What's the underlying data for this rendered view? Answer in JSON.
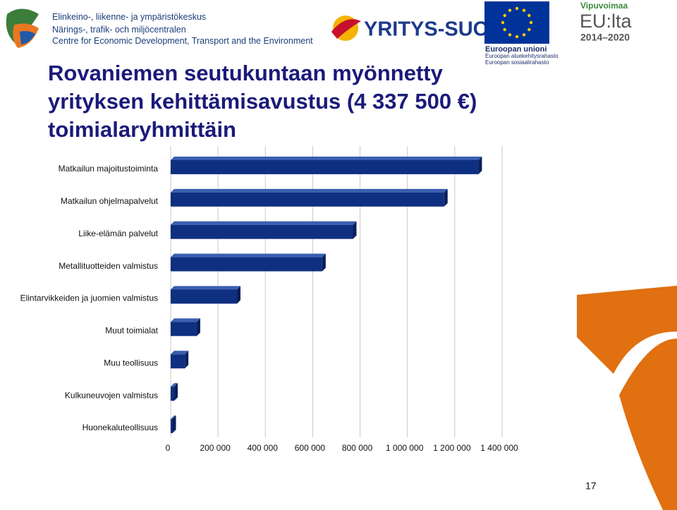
{
  "header": {
    "ely_lines": [
      "Elinkeino-, liikenne- ja ympäristökeskus",
      "Närings-, trafik- och miljöcentralen",
      "Centre for Economic Development, Transport and the Environment"
    ],
    "yritys_suomi": "YRITYS-SUOMI",
    "eu_title": "Euroopan unioni",
    "eu_lines": [
      "Euroopan aluekehitysrahasto",
      "Euroopan sosiaalirahasto"
    ],
    "vipu_title": "Vipuvoimaa",
    "vipu_main": "EU:lta",
    "vipu_years": "2014–2020"
  },
  "page_number": "17",
  "chart_data": {
    "type": "bar",
    "orientation": "horizontal",
    "title": "Rovaniemen seutukuntaan myönnetty yrityksen kehittämisavustus (4 337 500 €) toimialaryhmittäin",
    "categories": [
      "Matkailun majoitustoiminta",
      "Matkailun ohjelmapalvelut",
      "Liike-elämän palvelut",
      "Metallituotteiden valmistus",
      "Elintarvikkeiden ja juomien valmistus",
      "Muut toimialat",
      "Muu teollisuus",
      "Kulkuneuvojen valmistus",
      "Huonekaluteollisuus"
    ],
    "values": [
      1300000,
      1155000,
      770000,
      640000,
      280000,
      110000,
      60000,
      15000,
      7500
    ],
    "color": "#0f2f80",
    "xlim": [
      0,
      1400000
    ],
    "xticks": [
      0,
      {
        "value": 200000,
        "label": "200 000"
      },
      {
        "value": 400000,
        "label": "400 000"
      },
      {
        "value": 600000,
        "label": "600 000"
      },
      {
        "value": 800000,
        "label": "800 000"
      },
      {
        "value": 1000000,
        "label": "1 000 000"
      },
      {
        "value": 1200000,
        "label": "1 200 000"
      },
      {
        "value": 1400000,
        "label": "1 400 000"
      }
    ],
    "grid": true
  }
}
